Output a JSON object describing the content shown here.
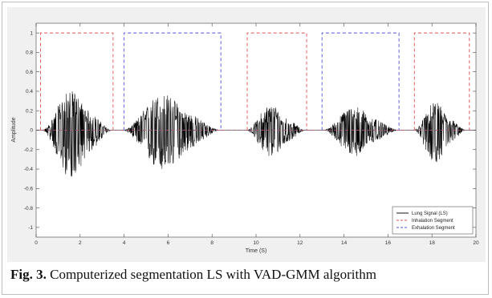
{
  "caption": {
    "label": "Fig. 3.",
    "text": " Computerized segmentation LS with VAD-GMM algorithm"
  },
  "chart_data": {
    "type": "line",
    "title": "",
    "xlabel": "Time (S)",
    "ylabel": "Amplitude",
    "xlim": [
      0,
      20
    ],
    "ylim": [
      -1.1,
      1.1
    ],
    "xticks": [
      0,
      2,
      4,
      6,
      8,
      10,
      12,
      14,
      16,
      18,
      20
    ],
    "yticks": [
      -1,
      -0.8,
      -0.6,
      -0.4,
      -0.2,
      0,
      0.2,
      0.4,
      0.6,
      0.8,
      1
    ],
    "grid": false,
    "legend_position": "bottom-right",
    "series": [
      {
        "name": "Lung Signal (LS)",
        "style": "solid",
        "color": "#000000",
        "bursts": [
          {
            "start": 0.3,
            "end": 3.4,
            "peak": 0.45,
            "trough": -0.55
          },
          {
            "start": 4.0,
            "end": 8.3,
            "peak": 0.42,
            "trough": -0.48
          },
          {
            "start": 9.6,
            "end": 12.2,
            "peak": 0.3,
            "trough": -0.32
          },
          {
            "start": 13.1,
            "end": 16.4,
            "peak": 0.28,
            "trough": -0.3
          },
          {
            "start": 17.2,
            "end": 19.5,
            "peak": 0.32,
            "trough": -0.37
          }
        ]
      },
      {
        "name": "Inhalation Segment",
        "style": "dashed",
        "color": "#e05050",
        "segments": [
          [
            0.2,
            3.5
          ],
          [
            9.6,
            12.3
          ],
          [
            17.2,
            19.7
          ]
        ],
        "level": 1
      },
      {
        "name": "Exhalation Segment",
        "style": "dashed",
        "color": "#5050e0",
        "segments": [
          [
            4.0,
            8.4
          ],
          [
            13.0,
            16.5
          ]
        ],
        "level": 1
      }
    ]
  }
}
